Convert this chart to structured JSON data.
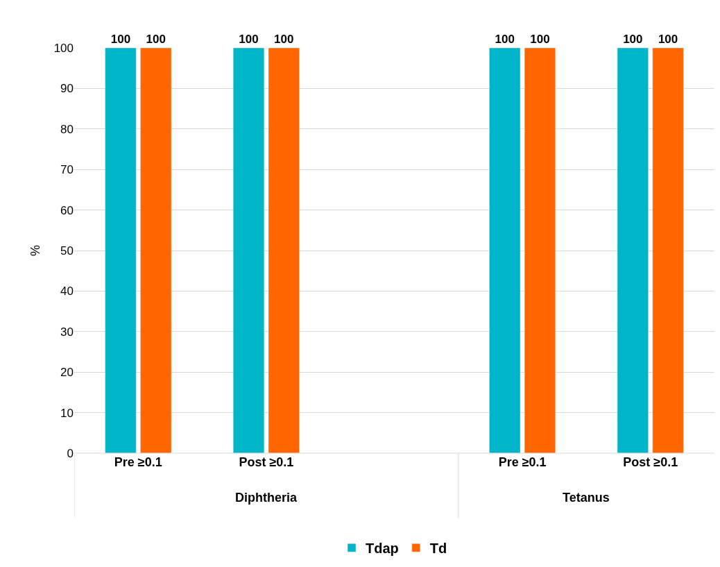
{
  "chart_data": {
    "type": "bar",
    "ylabel": "%",
    "categories": [
      "Pre ≥0.1",
      "Post ≥0.1",
      null,
      "Pre ≥0.1",
      "Post ≥0.1"
    ],
    "series": [
      {
        "name": "Tdap",
        "color": "#00b5c8",
        "values": [
          100,
          100,
          null,
          100,
          100
        ]
      },
      {
        "name": "Td",
        "color": "#ff6600",
        "values": [
          100,
          100,
          null,
          100,
          100
        ]
      }
    ],
    "annotations": [
      "Diphtheria",
      "Tetanus"
    ],
    "ylim": [
      0,
      100
    ],
    "yticks": [
      0,
      10,
      20,
      30,
      40,
      50,
      60,
      70,
      80,
      90,
      100
    ],
    "grid": "y",
    "legend": "bottom",
    "data_labels": true
  }
}
